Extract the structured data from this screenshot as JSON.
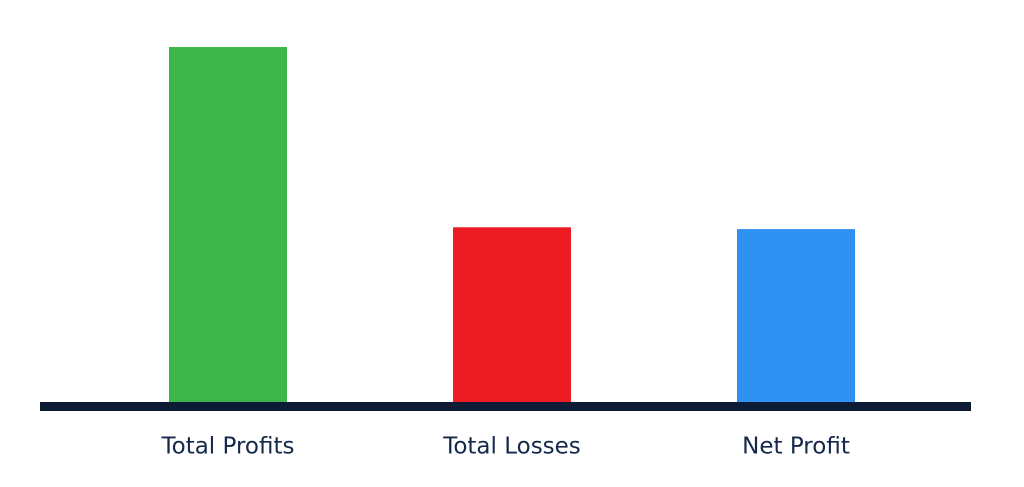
{
  "chart_data": {
    "type": "bar",
    "categories": [
      "Total Profits",
      "Total Losses",
      "Net Profit"
    ],
    "values": [
      100,
      49.5,
      49
    ],
    "colors": [
      "#3db54a",
      "#ed1c24",
      "#2e90f0"
    ]
  }
}
